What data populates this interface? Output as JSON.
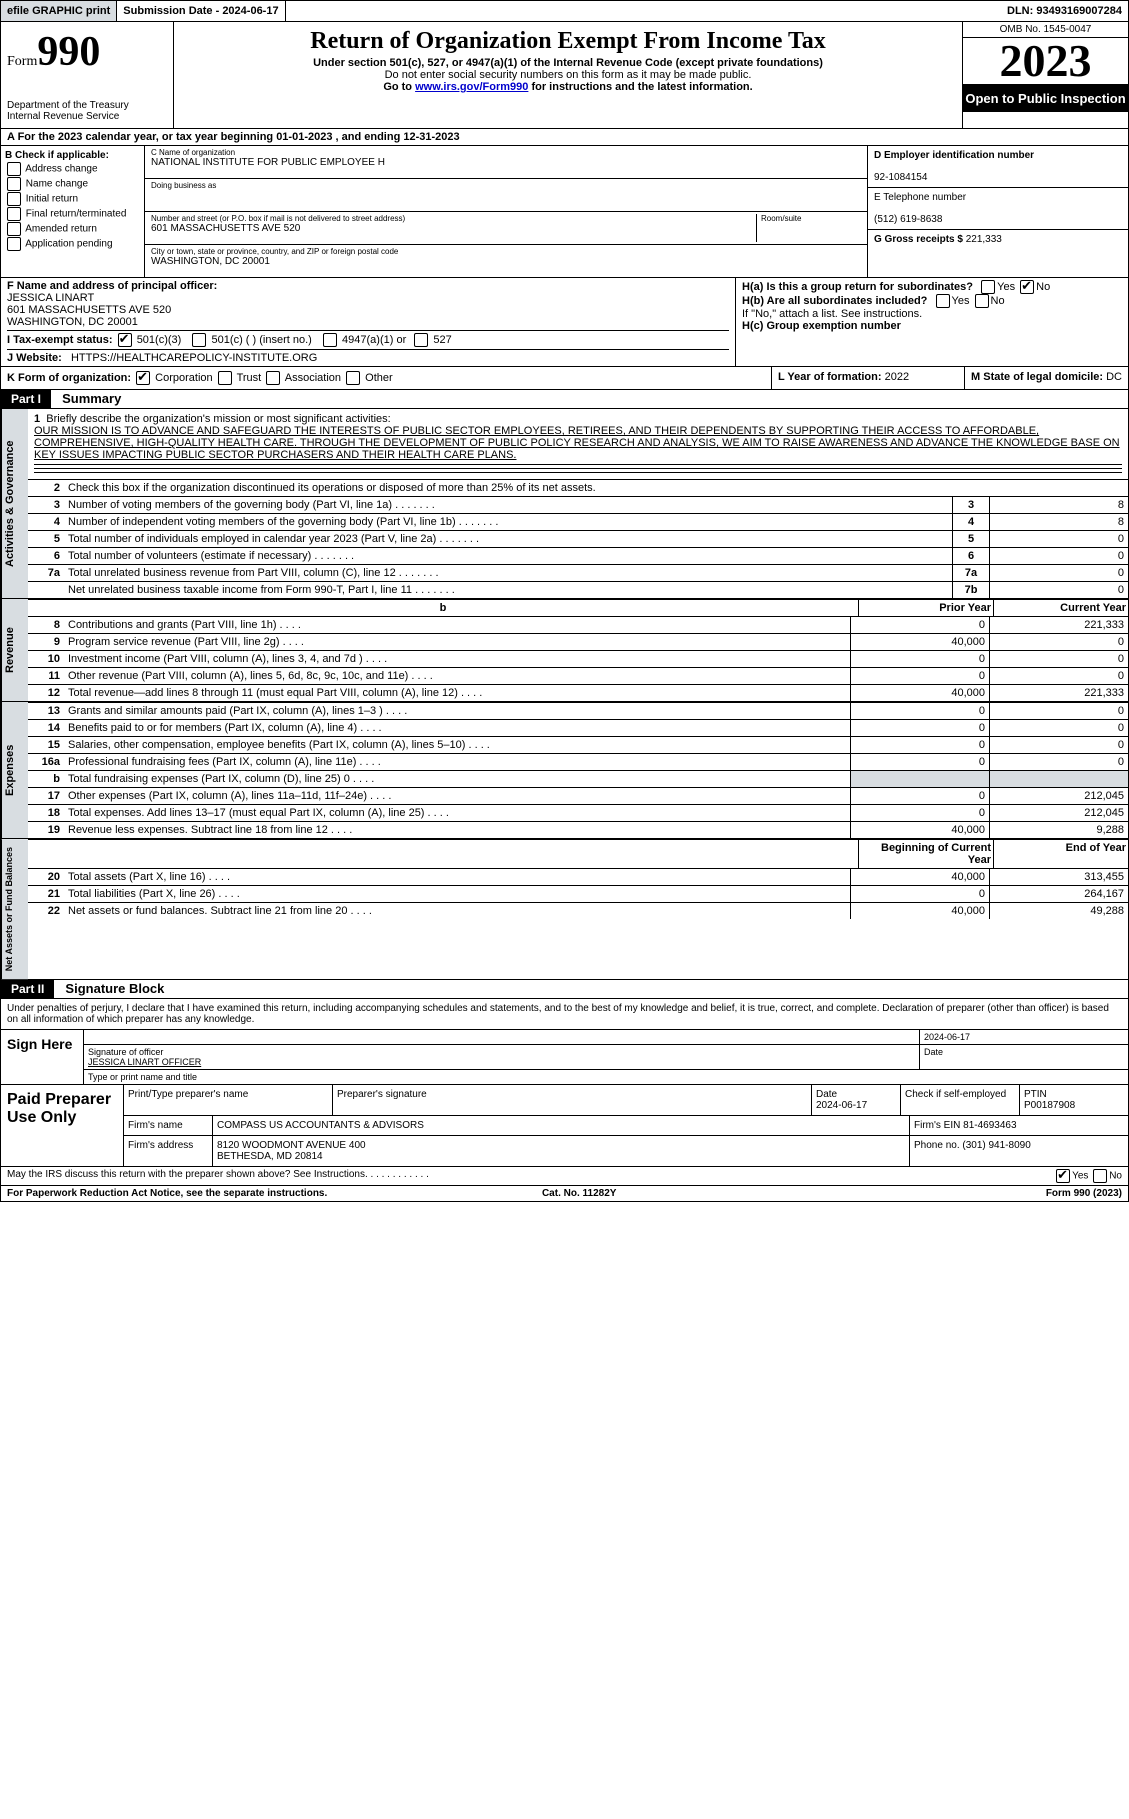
{
  "topbar": {
    "efile": "efile GRAPHIC print",
    "sub_label": "Submission Date - 2024-06-17",
    "dln": "DLN: 93493169007284"
  },
  "header": {
    "form_label": "Form",
    "form_num": "990",
    "dept": "Department of the Treasury",
    "irs": "Internal Revenue Service",
    "title": "Return of Organization Exempt From Income Tax",
    "sub1": "Under section 501(c), 527, or 4947(a)(1) of the Internal Revenue Code (except private foundations)",
    "sub2": "Do not enter social security numbers on this form as it may be made public.",
    "sub3_pre": "Go to ",
    "sub3_link": "www.irs.gov/Form990",
    "sub3_post": " for instructions and the latest information.",
    "omb": "OMB No. 1545-0047",
    "year": "2023",
    "open": "Open to Public Inspection"
  },
  "row_a": "A For the 2023 calendar year, or tax year beginning 01-01-2023    , and ending 12-31-2023",
  "b": {
    "label": "B Check if applicable:",
    "opts": [
      "Address change",
      "Name change",
      "Initial return",
      "Final return/terminated",
      "Amended return",
      "Application pending"
    ]
  },
  "c": {
    "name_label": "C Name of organization",
    "name": "NATIONAL INSTITUTE FOR PUBLIC EMPLOYEE H",
    "dba_label": "Doing business as",
    "street_label": "Number and street (or P.O. box if mail is not delivered to street address)",
    "room_label": "Room/suite",
    "street": "601 MASSACHUSETTS AVE 520",
    "city_label": "City or town, state or province, country, and ZIP or foreign postal code",
    "city": "WASHINGTON, DC  20001"
  },
  "d": {
    "ein_label": "D Employer identification number",
    "ein": "92-1084154",
    "tel_label": "E Telephone number",
    "tel": "(512) 619-8638",
    "gross_label": "G Gross receipts $",
    "gross": "221,333"
  },
  "f": {
    "label": "F  Name and address of principal officer:",
    "name": "JESSICA LINART",
    "addr1": "601 MASSACHUSETTS AVE 520",
    "addr2": "WASHINGTON, DC  20001"
  },
  "h": {
    "a": "H(a)  Is this a group return for subordinates?",
    "b": "H(b)  Are all subordinates included?",
    "note": "If \"No,\" attach a list. See instructions.",
    "c": "H(c)  Group exemption number"
  },
  "i": {
    "label": "I    Tax-exempt status:",
    "o1": "501(c)(3)",
    "o2": "501(c) (  ) (insert no.)",
    "o3": "4947(a)(1) or",
    "o4": "527"
  },
  "j": {
    "label": "J   Website:",
    "url": "HTTPS://HEALTHCAREPOLICY-INSTITUTE.ORG"
  },
  "k": {
    "label": "K Form of organization:",
    "opts": [
      "Corporation",
      "Trust",
      "Association",
      "Other"
    ]
  },
  "l": {
    "label": "L Year of formation:",
    "val": "2022"
  },
  "m": {
    "label": "M State of legal domicile:",
    "val": "DC"
  },
  "part1": {
    "label": "Part I",
    "title": "Summary",
    "l1": "Briefly describe the organization's mission or most significant activities:",
    "mission": "OUR MISSION IS TO ADVANCE AND SAFEGUARD THE INTERESTS OF PUBLIC SECTOR EMPLOYEES, RETIREES, AND THEIR DEPENDENTS BY SUPPORTING THEIR ACCESS TO AFFORDABLE, COMPREHENSIVE, HIGH-QUALITY HEALTH CARE. THROUGH THE DEVELOPMENT OF PUBLIC POLICY RESEARCH AND ANALYSIS, WE AIM TO RAISE AWARENESS AND ADVANCE THE KNOWLEDGE BASE ON KEY ISSUES IMPACTING PUBLIC SECTOR PURCHASERS AND THEIR HEALTH CARE PLANS.",
    "l2": "Check this box          if the organization discontinued its operations or disposed of more than 25% of its net assets.",
    "gov_tab": "Activities & Governance",
    "rev_tab": "Revenue",
    "exp_tab": "Expenses",
    "net_tab": "Net Assets or Fund Balances",
    "rows_gov": [
      {
        "n": "3",
        "d": "Number of voting members of the governing body (Part VI, line 1a)",
        "box": "3",
        "v": "8"
      },
      {
        "n": "4",
        "d": "Number of independent voting members of the governing body (Part VI, line 1b)",
        "box": "4",
        "v": "8"
      },
      {
        "n": "5",
        "d": "Total number of individuals employed in calendar year 2023 (Part V, line 2a)",
        "box": "5",
        "v": "0"
      },
      {
        "n": "6",
        "d": "Total number of volunteers (estimate if necessary)",
        "box": "6",
        "v": "0"
      },
      {
        "n": "7a",
        "d": "Total unrelated business revenue from Part VIII, column (C), line 12",
        "box": "7a",
        "v": "0"
      },
      {
        "n": " ",
        "d": "Net unrelated business taxable income from Form 990-T, Part I, line 11",
        "box": "7b",
        "v": "0"
      }
    ],
    "hdr_prior": "Prior Year",
    "hdr_curr": "Current Year",
    "rows_rev": [
      {
        "n": "8",
        "d": "Contributions and grants (Part VIII, line 1h)",
        "p": "0",
        "c": "221,333"
      },
      {
        "n": "9",
        "d": "Program service revenue (Part VIII, line 2g)",
        "p": "40,000",
        "c": "0"
      },
      {
        "n": "10",
        "d": "Investment income (Part VIII, column (A), lines 3, 4, and 7d )",
        "p": "0",
        "c": "0"
      },
      {
        "n": "11",
        "d": "Other revenue (Part VIII, column (A), lines 5, 6d, 8c, 9c, 10c, and 11e)",
        "p": "0",
        "c": "0"
      },
      {
        "n": "12",
        "d": "Total revenue—add lines 8 through 11 (must equal Part VIII, column (A), line 12)",
        "p": "40,000",
        "c": "221,333"
      }
    ],
    "rows_exp": [
      {
        "n": "13",
        "d": "Grants and similar amounts paid (Part IX, column (A), lines 1–3 )",
        "p": "0",
        "c": "0"
      },
      {
        "n": "14",
        "d": "Benefits paid to or for members (Part IX, column (A), line 4)",
        "p": "0",
        "c": "0"
      },
      {
        "n": "15",
        "d": "Salaries, other compensation, employee benefits (Part IX, column (A), lines 5–10)",
        "p": "0",
        "c": "0"
      },
      {
        "n": "16a",
        "d": "Professional fundraising fees (Part IX, column (A), line 11e)",
        "p": "0",
        "c": "0"
      },
      {
        "n": "b",
        "d": "Total fundraising expenses (Part IX, column (D), line 25) 0",
        "p": "grey",
        "c": "grey"
      },
      {
        "n": "17",
        "d": "Other expenses (Part IX, column (A), lines 11a–11d, 11f–24e)",
        "p": "0",
        "c": "212,045"
      },
      {
        "n": "18",
        "d": "Total expenses. Add lines 13–17 (must equal Part IX, column (A), line 25)",
        "p": "0",
        "c": "212,045"
      },
      {
        "n": "19",
        "d": "Revenue less expenses. Subtract line 18 from line 12",
        "p": "40,000",
        "c": "9,288"
      }
    ],
    "hdr_beg": "Beginning of Current Year",
    "hdr_end": "End of Year",
    "rows_net": [
      {
        "n": "20",
        "d": "Total assets (Part X, line 16)",
        "p": "40,000",
        "c": "313,455"
      },
      {
        "n": "21",
        "d": "Total liabilities (Part X, line 26)",
        "p": "0",
        "c": "264,167"
      },
      {
        "n": "22",
        "d": "Net assets or fund balances. Subtract line 21 from line 20",
        "p": "40,000",
        "c": "49,288"
      }
    ]
  },
  "part2": {
    "label": "Part II",
    "title": "Signature Block",
    "declare": "Under penalties of perjury, I declare that I have examined this return, including accompanying schedules and statements, and to the best of my knowledge and belief, it is true, correct, and complete. Declaration of preparer (other than officer) is based on all information of which preparer has any knowledge."
  },
  "sign": {
    "label": "Sign Here",
    "sig_label": "Signature of officer",
    "date_label": "Date",
    "date": "2024-06-17",
    "officer": "JESSICA LINART  OFFICER",
    "type_label": "Type or print name and title"
  },
  "prep": {
    "label": "Paid Preparer Use Only",
    "r1": {
      "c1": "Print/Type preparer's name",
      "c2": "Preparer's signature",
      "c3_l": "Date",
      "c3": "2024-06-17",
      "c4": "Check          if self-employed",
      "c5_l": "PTIN",
      "c5": "P00187908"
    },
    "r2": {
      "l": "Firm's name",
      "v": "COMPASS US ACCOUNTANTS & ADVISORS",
      "r": "Firm's EIN  81-4693463"
    },
    "r3": {
      "l": "Firm's address",
      "v1": "8120 WOODMONT AVENUE 400",
      "v2": "BETHESDA, MD  20814",
      "r": "Phone no. (301) 941-8090"
    }
  },
  "footer": {
    "discuss": "May the IRS discuss this return with the preparer shown above? See Instructions.",
    "paperwork": "For Paperwork Reduction Act Notice, see the separate instructions.",
    "cat": "Cat. No. 11282Y",
    "form": "Form 990 (2023)"
  }
}
